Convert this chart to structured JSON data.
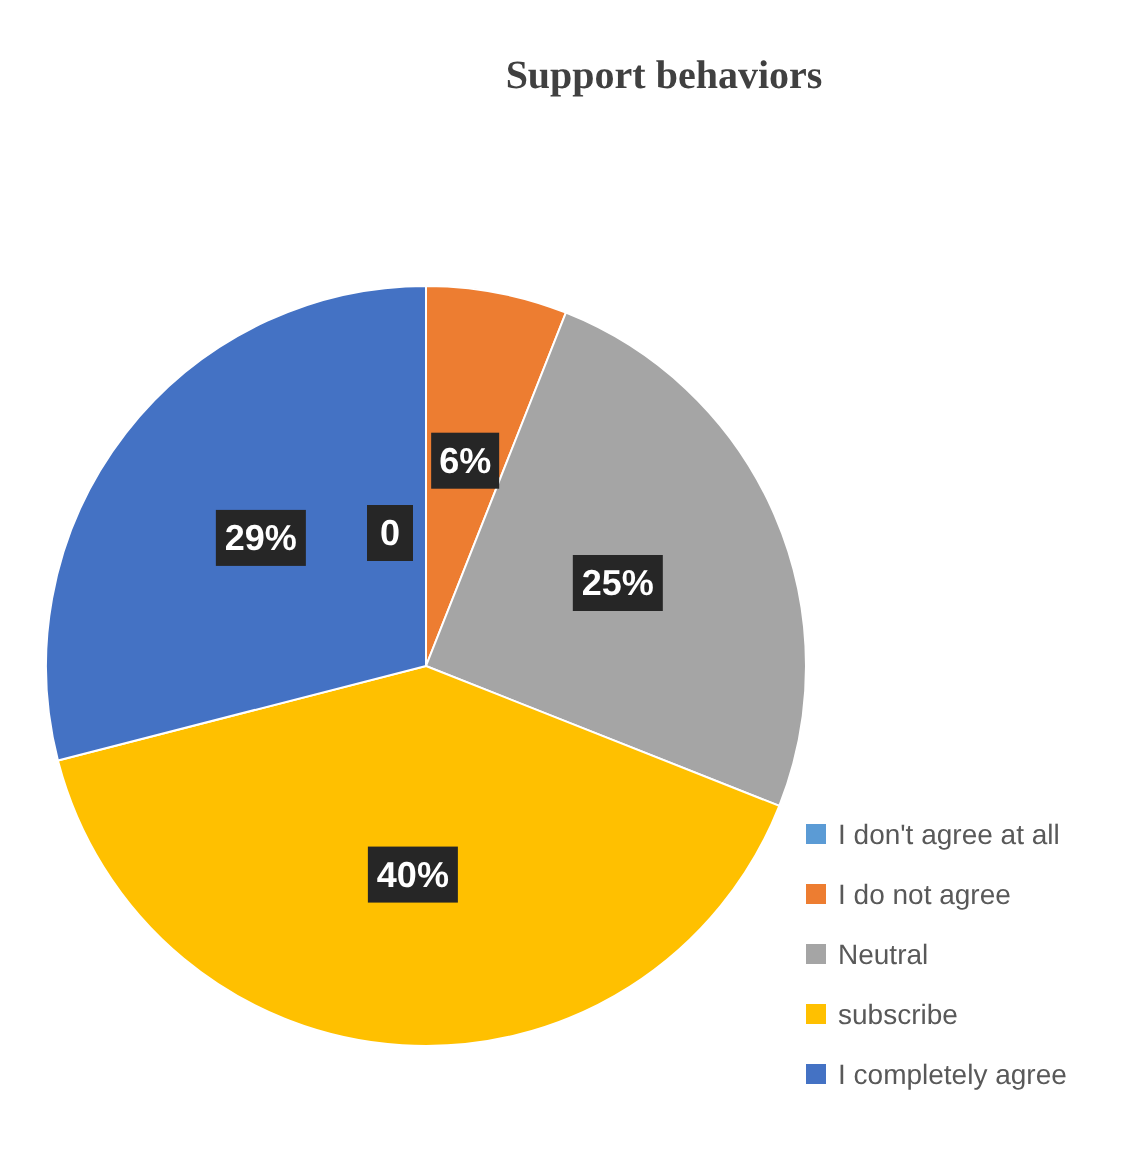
{
  "chart_data": {
    "type": "pie",
    "title": "Support behaviors",
    "categories": [
      "I don't agree at all",
      "I do not agree",
      "Neutral",
      "subscribe",
      "I completely agree"
    ],
    "values": [
      0,
      6,
      25,
      40,
      29
    ],
    "colors": [
      "#5b9bd5",
      "#ed7d31",
      "#a5a5a5",
      "#ffc000",
      "#4472c4"
    ],
    "value_labels": [
      "0",
      "6%",
      "25%",
      "40%",
      "29%"
    ],
    "legend": "bottom right"
  }
}
